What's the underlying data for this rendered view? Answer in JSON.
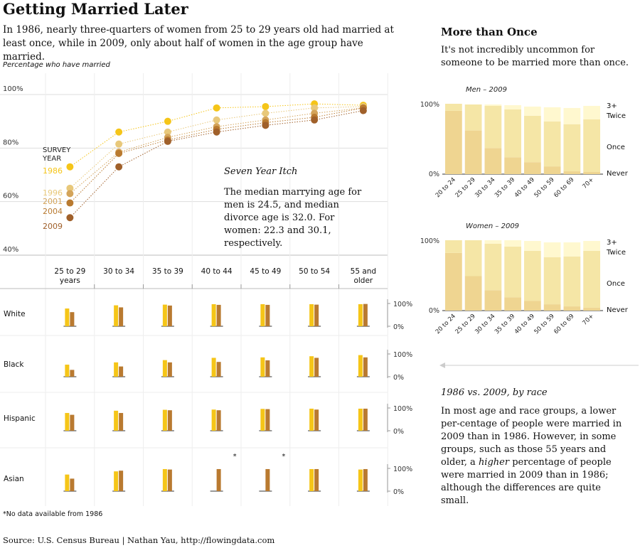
{
  "title": "Getting Married Later",
  "subtitle": "In 1986, nearly three-quarters of women from 25 to 29 years old had married at least once, while in 2009, only about half of women in the age group have married.",
  "axis_note": "Percentage who have married",
  "annotation": {
    "heading": "Seven Year Itch",
    "body": "The median marrying age for men is 24.5, and median divorce age is 32.0. For women: 22.3 and 30.1, respectively."
  },
  "survey_year_label": [
    "SURVEY",
    "YEAR"
  ],
  "footnote": "*No data available from 1986",
  "source": "Source: U.S. Census Bureau | Nathan Yau, http://flowingdata.com",
  "colors": {
    "y1986": "#f5c518",
    "y1996": "#e8c87a",
    "y2001": "#d4a45a",
    "y2004": "#b97a30",
    "y2009": "#a0602a",
    "grid": "#dddddd"
  },
  "right": {
    "heading": "More than Once",
    "text": "It's not incredibly uncommon for someone to be married more than once.",
    "race_heading": "1986 vs. 2009, by race",
    "race_text_1": "In most age and race groups, a lower per-centage of people were married in 2009 than in 1986. However, in some groups, such as those 55 years and older, a ",
    "race_text_em": "higher",
    "race_text_2": " percentage of people were married in 2009 than in 1986; although the differences are quite small."
  },
  "chart_data": [
    {
      "type": "line",
      "title": "Getting Married Later",
      "ylabel": "Percentage who have married",
      "ylim": [
        40,
        100
      ],
      "yticks": [
        "100%",
        "80%",
        "60%",
        "40%"
      ],
      "categories": [
        "25 to 29 years",
        "30 to 34",
        "35 to 39",
        "40 to 44",
        "45 to 49",
        "50 to 54",
        "55 and older"
      ],
      "series": [
        {
          "name": "1986",
          "values": [
            73,
            86,
            90,
            95,
            95.5,
            96.5,
            96
          ]
        },
        {
          "name": "1996",
          "values": [
            65,
            81.5,
            86,
            90.5,
            93,
            95,
            95.5
          ]
        },
        {
          "name": "2001",
          "values": [
            63,
            78.5,
            84,
            88,
            90.5,
            93,
            95
          ]
        },
        {
          "name": "2004",
          "values": [
            59.5,
            78,
            83,
            87,
            89.5,
            91.5,
            95
          ]
        },
        {
          "name": "2009",
          "values": [
            54,
            73,
            82.5,
            86,
            88.5,
            90.5,
            94
          ]
        }
      ]
    },
    {
      "type": "bar",
      "title": "1986 vs. 2009, by race",
      "ylim": [
        0,
        100
      ],
      "yticks": [
        "100%",
        "0%"
      ],
      "categories": [
        "25 to 29 years",
        "30 to 34",
        "35 to 39",
        "40 to 44",
        "45 to 49",
        "50 to 54",
        "55 and older"
      ],
      "groups": [
        {
          "name": "White",
          "y1986": [
            78,
            92,
            95,
            97,
            97,
            97,
            97
          ],
          "y2009": [
            62,
            83,
            91,
            94,
            94,
            95,
            98
          ]
        },
        {
          "name": "Black",
          "y1986": [
            53,
            63,
            73,
            83,
            85,
            90,
            95
          ],
          "y2009": [
            30,
            45,
            63,
            65,
            72,
            83,
            85
          ]
        },
        {
          "name": "Hispanic",
          "y1986": [
            78,
            88,
            92,
            93,
            96,
            97,
            97
          ],
          "y2009": [
            70,
            78,
            90,
            90,
            95,
            93,
            97
          ]
        },
        {
          "name": "Asian",
          "y1986": [
            73,
            87,
            97,
            null,
            null,
            97,
            95
          ],
          "y2009": [
            55,
            90,
            95,
            97,
            97,
            97,
            97
          ],
          "star": [
            false,
            false,
            false,
            true,
            true,
            false,
            false
          ]
        }
      ]
    },
    {
      "type": "bar",
      "title": "Men – 2009",
      "stacked": true,
      "ylim": [
        0,
        100
      ],
      "yticks": [
        "100%",
        "0%"
      ],
      "categories": [
        "20 to 24",
        "25 to 29",
        "30 to 34",
        "35 to 39",
        "40 to 49",
        "50 to 59",
        "60 to 69",
        "70+"
      ],
      "legend": [
        "3+",
        "Twice",
        "Once",
        "Never"
      ],
      "series": [
        {
          "name": "Never",
          "values": [
            0,
            0,
            0,
            0,
            0,
            0,
            0,
            0
          ]
        },
        {
          "name": "Once",
          "values": [
            90,
            62,
            37,
            24,
            17,
            11,
            4,
            3
          ]
        },
        {
          "name": "Twice",
          "values": [
            10,
            37,
            60,
            68,
            66,
            64,
            67,
            75
          ]
        },
        {
          "name": "3+",
          "values": [
            0,
            0,
            2,
            6,
            13,
            20,
            23,
            19
          ]
        }
      ]
    },
    {
      "type": "bar",
      "title": "Women – 2009",
      "stacked": true,
      "ylim": [
        0,
        100
      ],
      "yticks": [
        "100%",
        "0%"
      ],
      "categories": [
        "20 to 24",
        "25 to 29",
        "30 to 34",
        "35 to 39",
        "40 to 49",
        "50 to 59",
        "60 to 69",
        "70+"
      ],
      "legend": [
        "3+",
        "Twice",
        "Once",
        "Never"
      ],
      "series": [
        {
          "name": "Never",
          "values": [
            0,
            0,
            0,
            0,
            0,
            0,
            0,
            0
          ]
        },
        {
          "name": "Once",
          "values": [
            82,
            49,
            29,
            19,
            14,
            9,
            6,
            4
          ]
        },
        {
          "name": "Twice",
          "values": [
            18,
            51,
            66,
            72,
            71,
            67,
            71,
            81
          ]
        },
        {
          "name": "3+",
          "values": [
            0,
            0,
            5,
            9,
            14,
            21,
            20,
            14
          ]
        }
      ]
    }
  ]
}
